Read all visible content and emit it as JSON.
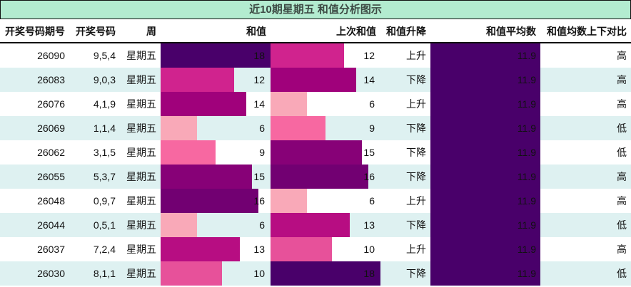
{
  "title": "近10期星期五 和值分析图示",
  "headers": [
    "开奖号码期号",
    "开奖号码",
    "周",
    "和值",
    "上次和值",
    "和值升降",
    "和值平均数",
    "和值均数上下对比"
  ],
  "colors": {
    "title_bg": "#b3ecd0",
    "row_alt_bg": "#def1f1",
    "value_scale": {
      "6": "#f9a9b8",
      "9": "#f768a1",
      "10": "#e7519a",
      "12": "#d0238e",
      "13": "#b70d82",
      "14": "#a0017b",
      "15": "#870177",
      "16": "#720072",
      "18": "#49006a"
    },
    "avg_bar": "#49006a"
  },
  "rows": [
    {
      "issue": "26090",
      "numbers": "9,5,4",
      "weekday": "星期五",
      "sum": "18",
      "prev_sum": "12",
      "trend": "上升",
      "avg": "11.9",
      "compare": "高"
    },
    {
      "issue": "26083",
      "numbers": "9,0,3",
      "weekday": "星期五",
      "sum": "12",
      "prev_sum": "14",
      "trend": "下降",
      "avg": "11.9",
      "compare": "高"
    },
    {
      "issue": "26076",
      "numbers": "4,1,9",
      "weekday": "星期五",
      "sum": "14",
      "prev_sum": "6",
      "trend": "上升",
      "avg": "11.9",
      "compare": "高"
    },
    {
      "issue": "26069",
      "numbers": "1,1,4",
      "weekday": "星期五",
      "sum": "6",
      "prev_sum": "9",
      "trend": "下降",
      "avg": "11.9",
      "compare": "低"
    },
    {
      "issue": "26062",
      "numbers": "3,1,5",
      "weekday": "星期五",
      "sum": "9",
      "prev_sum": "15",
      "trend": "下降",
      "avg": "11.9",
      "compare": "低"
    },
    {
      "issue": "26055",
      "numbers": "5,3,7",
      "weekday": "星期五",
      "sum": "15",
      "prev_sum": "16",
      "trend": "下降",
      "avg": "11.9",
      "compare": "高"
    },
    {
      "issue": "26048",
      "numbers": "0,9,7",
      "weekday": "星期五",
      "sum": "16",
      "prev_sum": "6",
      "trend": "上升",
      "avg": "11.9",
      "compare": "高"
    },
    {
      "issue": "26044",
      "numbers": "0,5,1",
      "weekday": "星期五",
      "sum": "6",
      "prev_sum": "13",
      "trend": "下降",
      "avg": "11.9",
      "compare": "低"
    },
    {
      "issue": "26037",
      "numbers": "7,2,4",
      "weekday": "星期五",
      "sum": "13",
      "prev_sum": "10",
      "trend": "上升",
      "avg": "11.9",
      "compare": "高"
    },
    {
      "issue": "26030",
      "numbers": "8,1,1",
      "weekday": "星期五",
      "sum": "10",
      "prev_sum": "18",
      "trend": "下降",
      "avg": "11.9",
      "compare": "低"
    }
  ],
  "chart_data": {
    "type": "table",
    "title": "近10期星期五 和值分析图示",
    "columns": [
      "开奖号码期号",
      "开奖号码",
      "周",
      "和值",
      "上次和值",
      "和值升降",
      "和值平均数",
      "和值均数上下对比"
    ],
    "categories": [
      "26090",
      "26083",
      "26076",
      "26069",
      "26062",
      "26055",
      "26048",
      "26044",
      "26037",
      "26030"
    ],
    "series": [
      {
        "name": "和值",
        "values": [
          18,
          12,
          14,
          6,
          9,
          15,
          16,
          6,
          13,
          10
        ]
      },
      {
        "name": "上次和值",
        "values": [
          12,
          14,
          6,
          9,
          15,
          16,
          6,
          13,
          10,
          18
        ]
      },
      {
        "name": "和值平均数",
        "values": [
          11.9,
          11.9,
          11.9,
          11.9,
          11.9,
          11.9,
          11.9,
          11.9,
          11.9,
          11.9
        ]
      }
    ],
    "numbers": [
      "9,5,4",
      "9,0,3",
      "4,1,9",
      "1,1,4",
      "3,1,5",
      "5,3,7",
      "0,9,7",
      "0,5,1",
      "7,2,4",
      "8,1,1"
    ],
    "trend": [
      "上升",
      "下降",
      "上升",
      "下降",
      "下降",
      "下降",
      "上升",
      "下降",
      "上升",
      "下降"
    ],
    "compare": [
      "高",
      "高",
      "高",
      "低",
      "低",
      "高",
      "高",
      "低",
      "高",
      "低"
    ],
    "bar_scale_max": 18,
    "notes": "In-cell data bars; 和值 and 上次和值 bars scaled to max 18 with RdPu color scale; 和值平均数 bar full-width."
  }
}
